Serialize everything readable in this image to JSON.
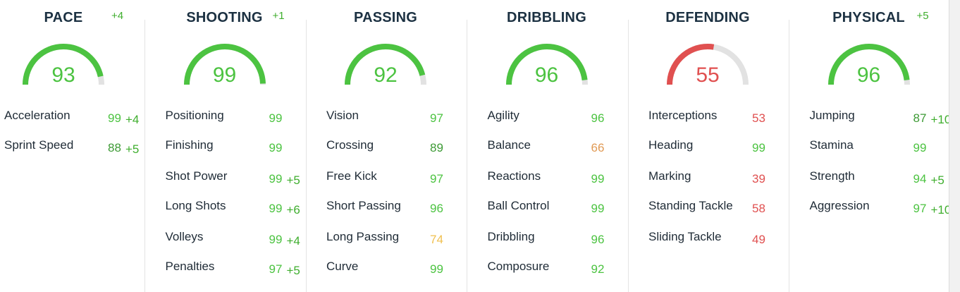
{
  "colors": {
    "elite": "#4cc341",
    "good": "#3d9a35",
    "mid": "#e09a55",
    "fair": "#f0c050",
    "low": "#e05050",
    "track": "#e2e2e2"
  },
  "categories": [
    {
      "title": "PACE",
      "delta": "+4",
      "rating": 93,
      "color": "#4cc341",
      "stats": [
        {
          "label": "Acceleration",
          "value": "99",
          "color": "#4cc341",
          "delta": "+4"
        },
        {
          "label": "Sprint Speed",
          "value": "88",
          "color": "#3d9a35",
          "delta": "+5"
        }
      ]
    },
    {
      "title": "SHOOTING",
      "delta": "+1",
      "rating": 99,
      "color": "#4cc341",
      "stats": [
        {
          "label": "Positioning",
          "value": "99",
          "color": "#4cc341"
        },
        {
          "label": "Finishing",
          "value": "99",
          "color": "#4cc341"
        },
        {
          "label": "Shot Power",
          "value": "99",
          "color": "#4cc341",
          "delta": "+5"
        },
        {
          "label": "Long Shots",
          "value": "99",
          "color": "#4cc341",
          "delta": "+6"
        },
        {
          "label": "Volleys",
          "value": "99",
          "color": "#4cc341",
          "delta": "+4"
        },
        {
          "label": "Penalties",
          "value": "97",
          "color": "#4cc341",
          "delta": "+5"
        }
      ]
    },
    {
      "title": "PASSING",
      "rating": 92,
      "color": "#4cc341",
      "stats": [
        {
          "label": "Vision",
          "value": "97",
          "color": "#4cc341"
        },
        {
          "label": "Crossing",
          "value": "89",
          "color": "#3d9a35"
        },
        {
          "label": "Free Kick",
          "value": "97",
          "color": "#4cc341"
        },
        {
          "label": "Short Passing",
          "value": "96",
          "color": "#4cc341"
        },
        {
          "label": "Long Passing",
          "value": "74",
          "color": "#f0c050"
        },
        {
          "label": "Curve",
          "value": "99",
          "color": "#4cc341"
        }
      ]
    },
    {
      "title": "DRIBBLING",
      "rating": 96,
      "color": "#4cc341",
      "stats": [
        {
          "label": "Agility",
          "value": "96",
          "color": "#4cc341"
        },
        {
          "label": "Balance",
          "value": "66",
          "color": "#e09a55"
        },
        {
          "label": "Reactions",
          "value": "99",
          "color": "#4cc341"
        },
        {
          "label": "Ball Control",
          "value": "99",
          "color": "#4cc341"
        },
        {
          "label": "Dribbling",
          "value": "96",
          "color": "#4cc341"
        },
        {
          "label": "Composure",
          "value": "92",
          "color": "#4cc341"
        }
      ]
    },
    {
      "title": "DEFENDING",
      "rating": 55,
      "color": "#e05050",
      "stats": [
        {
          "label": "Interceptions",
          "value": "53",
          "color": "#e05050"
        },
        {
          "label": "Heading",
          "value": "99",
          "color": "#4cc341"
        },
        {
          "label": "Marking",
          "value": "39",
          "color": "#e05050"
        },
        {
          "label": "Standing Tackle",
          "value": "58",
          "color": "#e05050"
        },
        {
          "label": "Sliding Tackle",
          "value": "49",
          "color": "#e05050"
        }
      ]
    },
    {
      "title": "PHYSICAL",
      "delta": "+5",
      "rating": 96,
      "color": "#4cc341",
      "stats": [
        {
          "label": "Jumping",
          "value": "87",
          "color": "#3d9a35",
          "delta": "+10"
        },
        {
          "label": "Stamina",
          "value": "99",
          "color": "#4cc341"
        },
        {
          "label": "Strength",
          "value": "94",
          "color": "#4cc341",
          "delta": "+5"
        },
        {
          "label": "Aggression",
          "value": "97",
          "color": "#4cc341",
          "delta": "+10"
        }
      ]
    }
  ]
}
